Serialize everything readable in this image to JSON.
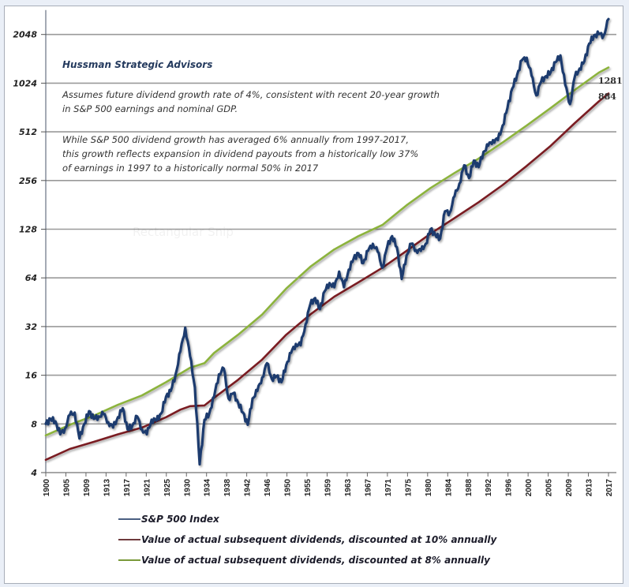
{
  "chart_data": {
    "type": "line",
    "title": "",
    "annotations": {
      "source": "Hussman Strategic Advisors",
      "paragraph1": [
        "Assumes future dividend growth rate of 4%, consistent with recent 20-year growth",
        "in S&P 500 earnings and nominal GDP."
      ],
      "paragraph2": [
        "While S&P 500  dividend growth has averaged 6% annually from 1997-2017,",
        "this growth reflects expansion in dividend payouts from a historically low 37%",
        "of earnings in 1997 to a historically normal 50% in 2017"
      ],
      "end_labels": [
        "1281",
        "884"
      ],
      "watermark": "Rectangular Snip"
    },
    "xlabel": "",
    "ylabel": "",
    "y_scale": "log2",
    "ylim": [
      4,
      2900
    ],
    "xlim": [
      1900,
      2017
    ],
    "y_ticks": [
      4,
      8,
      16,
      32,
      64,
      128,
      256,
      512,
      1024,
      2048
    ],
    "y_tick_labels": [
      "4",
      "8",
      "16",
      "32",
      "64",
      "128",
      "256",
      "512",
      "1024",
      "2048"
    ],
    "x_tick_labels": [
      "1900",
      "1905",
      "1909",
      "1913",
      "1917",
      "1921",
      "1925",
      "1930",
      "1934",
      "1938",
      "1942",
      "1946",
      "1950",
      "1955",
      "1959",
      "1963",
      "1967",
      "1971",
      "1975",
      "1980",
      "1984",
      "1988",
      "1992",
      "1996",
      "2000",
      "2005",
      "2009",
      "2013",
      "2017"
    ],
    "grid": "horizontal",
    "legend_position": "bottom",
    "series": [
      {
        "name": "S&P 500 Index",
        "color": "#1f3b6e",
        "points": [
          [
            1900,
            8.0
          ],
          [
            1901,
            8.6
          ],
          [
            1902,
            8.3
          ],
          [
            1903,
            6.9
          ],
          [
            1904,
            7.5
          ],
          [
            1905,
            9.1
          ],
          [
            1906,
            9.4
          ],
          [
            1907,
            6.5
          ],
          [
            1908,
            8.0
          ],
          [
            1909,
            9.6
          ],
          [
            1910,
            8.6
          ],
          [
            1911,
            8.9
          ],
          [
            1912,
            9.2
          ],
          [
            1913,
            8.2
          ],
          [
            1914,
            7.6
          ],
          [
            1915,
            8.8
          ],
          [
            1916,
            10.0
          ],
          [
            1917,
            7.4
          ],
          [
            1918,
            7.8
          ],
          [
            1919,
            8.9
          ],
          [
            1920,
            7.4
          ],
          [
            1921,
            6.9
          ],
          [
            1922,
            8.5
          ],
          [
            1923,
            8.4
          ],
          [
            1924,
            9.3
          ],
          [
            1925,
            11.8
          ],
          [
            1926,
            12.8
          ],
          [
            1927,
            16.2
          ],
          [
            1928,
            22.5
          ],
          [
            1929,
            31.5
          ],
          [
            1930,
            21.0
          ],
          [
            1931,
            13.5
          ],
          [
            1932,
            4.5
          ],
          [
            1933,
            8.5
          ],
          [
            1934,
            9.3
          ],
          [
            1935,
            11.8
          ],
          [
            1936,
            16.2
          ],
          [
            1937,
            17.6
          ],
          [
            1938,
            11.5
          ],
          [
            1939,
            12.4
          ],
          [
            1940,
            10.8
          ],
          [
            1941,
            9.4
          ],
          [
            1942,
            7.9
          ],
          [
            1943,
            11.5
          ],
          [
            1944,
            12.8
          ],
          [
            1945,
            15.5
          ],
          [
            1946,
            19.0
          ],
          [
            1947,
            15.2
          ],
          [
            1948,
            15.8
          ],
          [
            1949,
            14.5
          ],
          [
            1950,
            18.5
          ],
          [
            1951,
            22.0
          ],
          [
            1952,
            25.0
          ],
          [
            1953,
            24.5
          ],
          [
            1954,
            33.0
          ],
          [
            1955,
            44.0
          ],
          [
            1956,
            48.0
          ],
          [
            1957,
            41.0
          ],
          [
            1958,
            53.0
          ],
          [
            1959,
            59.5
          ],
          [
            1960,
            56.0
          ],
          [
            1961,
            70.0
          ],
          [
            1962,
            56.0
          ],
          [
            1963,
            72.0
          ],
          [
            1964,
            84.0
          ],
          [
            1965,
            91.0
          ],
          [
            1966,
            79.0
          ],
          [
            1967,
            94.0
          ],
          [
            1968,
            104.0
          ],
          [
            1969,
            93.0
          ],
          [
            1970,
            74.0
          ],
          [
            1971,
            100.0
          ],
          [
            1972,
            116.0
          ],
          [
            1973,
            99.0
          ],
          [
            1974,
            63.0
          ],
          [
            1975,
            88.0
          ],
          [
            1976,
            104.0
          ],
          [
            1977,
            95.0
          ],
          [
            1978,
            94.0
          ],
          [
            1979,
            104.0
          ],
          [
            1980,
            128.0
          ],
          [
            1981,
            118.0
          ],
          [
            1982,
            112.0
          ],
          [
            1983,
            165.0
          ],
          [
            1984,
            162.0
          ],
          [
            1985,
            205.0
          ],
          [
            1986,
            245.0
          ],
          [
            1987,
            318.0
          ],
          [
            1988,
            265.0
          ],
          [
            1989,
            340.0
          ],
          [
            1990,
            310.0
          ],
          [
            1991,
            385.0
          ],
          [
            1992,
            420.0
          ],
          [
            1993,
            455.0
          ],
          [
            1994,
            455.0
          ],
          [
            1995,
            560.0
          ],
          [
            1996,
            720.0
          ],
          [
            1997,
            950.0
          ],
          [
            1998,
            1150.0
          ],
          [
            1999,
            1420.0
          ],
          [
            2000,
            1470.0
          ],
          [
            2001,
            1140.0
          ],
          [
            2002,
            860.0
          ],
          [
            2003,
            1050.0
          ],
          [
            2004,
            1130.0
          ],
          [
            2005,
            1200.0
          ],
          [
            2006,
            1380.0
          ],
          [
            2007,
            1520.0
          ],
          [
            2008,
            1000.0
          ],
          [
            2009,
            760.0
          ],
          [
            2010,
            1120.0
          ],
          [
            2011,
            1260.0
          ],
          [
            2012,
            1400.0
          ],
          [
            2013,
            1800.0
          ],
          [
            2014,
            2020.0
          ],
          [
            2015,
            2060.0
          ],
          [
            2016,
            2020.0
          ],
          [
            2017,
            2550.0
          ]
        ]
      },
      {
        "name": "Value of actual subsequent dividends, discounted at 10% annually",
        "color": "#7a1f22",
        "points": [
          [
            1900,
            4.8
          ],
          [
            1905,
            5.6
          ],
          [
            1910,
            6.2
          ],
          [
            1915,
            6.9
          ],
          [
            1920,
            7.6
          ],
          [
            1925,
            8.8
          ],
          [
            1928,
            9.8
          ],
          [
            1930,
            10.3
          ],
          [
            1933,
            10.4
          ],
          [
            1935,
            11.6
          ],
          [
            1940,
            15.0
          ],
          [
            1945,
            20.0
          ],
          [
            1950,
            28.5
          ],
          [
            1955,
            38.0
          ],
          [
            1960,
            49.0
          ],
          [
            1965,
            60.0
          ],
          [
            1970,
            74.0
          ],
          [
            1975,
            94.0
          ],
          [
            1980,
            120.0
          ],
          [
            1985,
            150.0
          ],
          [
            1990,
            188.0
          ],
          [
            1995,
            240.0
          ],
          [
            2000,
            315.0
          ],
          [
            2005,
            420.0
          ],
          [
            2010,
            580.0
          ],
          [
            2015,
            790.0
          ],
          [
            2017,
            884.0
          ]
        ]
      },
      {
        "name": "Value of actual subsequent dividends, discounted at 8% annually",
        "color": "#8cb33c",
        "points": [
          [
            1900,
            6.8
          ],
          [
            1905,
            7.9
          ],
          [
            1910,
            9.0
          ],
          [
            1915,
            10.5
          ],
          [
            1920,
            12.0
          ],
          [
            1925,
            14.5
          ],
          [
            1930,
            17.8
          ],
          [
            1933,
            19.0
          ],
          [
            1935,
            22.0
          ],
          [
            1940,
            28.5
          ],
          [
            1945,
            38.0
          ],
          [
            1950,
            55.0
          ],
          [
            1955,
            75.0
          ],
          [
            1960,
            96.0
          ],
          [
            1965,
            116.0
          ],
          [
            1970,
            136.0
          ],
          [
            1975,
            180.0
          ],
          [
            1980,
            230.0
          ],
          [
            1985,
            285.0
          ],
          [
            1990,
            350.0
          ],
          [
            1995,
            440.0
          ],
          [
            2000,
            560.0
          ],
          [
            2005,
            720.0
          ],
          [
            2010,
            930.0
          ],
          [
            2015,
            1190.0
          ],
          [
            2017,
            1281.0
          ]
        ]
      }
    ]
  }
}
